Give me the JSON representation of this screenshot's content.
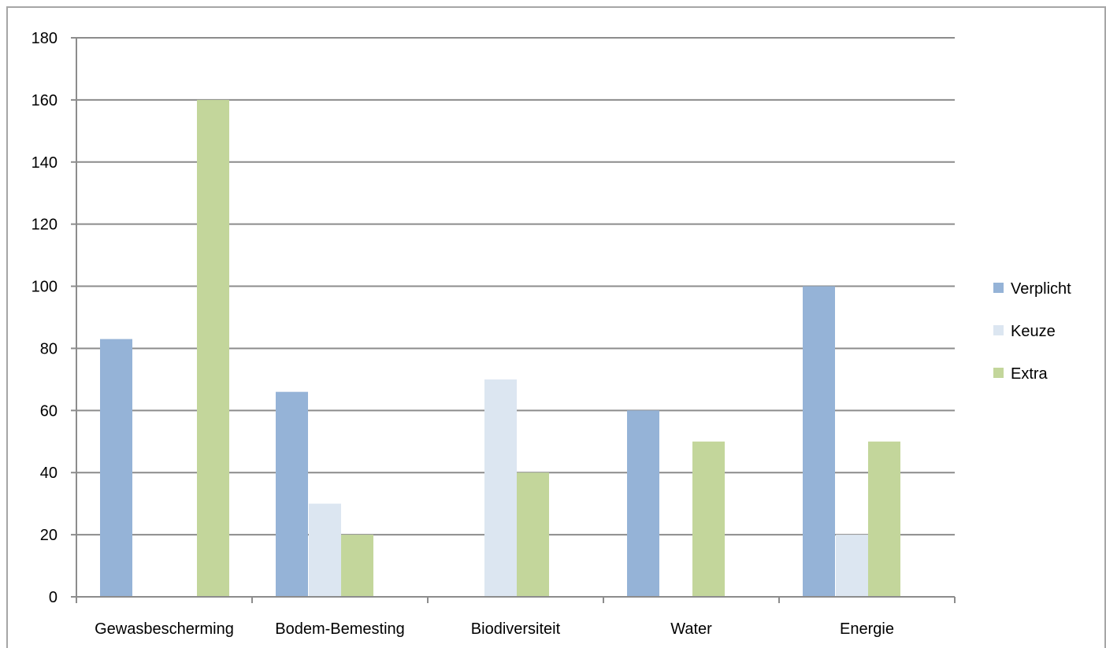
{
  "chart_data": {
    "type": "bar",
    "title": "",
    "xlabel": "",
    "ylabel": "",
    "categories": [
      "Gewasbescherming",
      "Bodem-Bemesting",
      "Biodiversiteit",
      "Water",
      "Energie"
    ],
    "series": [
      {
        "name": "Verplicht",
        "color": "#95b3d7",
        "values": [
          83,
          66,
          0,
          60,
          100
        ]
      },
      {
        "name": "Keuze",
        "color": "#dce6f1",
        "values": [
          0,
          30,
          70,
          0,
          20
        ]
      },
      {
        "name": "Extra",
        "color": "#c3d69b",
        "values": [
          0,
          20,
          40,
          50,
          50
        ]
      },
      {
        "name": "",
        "color": "#c3d69b",
        "values": [
          160,
          0,
          0,
          0,
          0
        ]
      }
    ],
    "ylim": [
      0,
      180
    ],
    "yticks": [
      0,
      20,
      40,
      60,
      80,
      100,
      120,
      140,
      160,
      180
    ],
    "grid": true,
    "legend_position": "right"
  }
}
